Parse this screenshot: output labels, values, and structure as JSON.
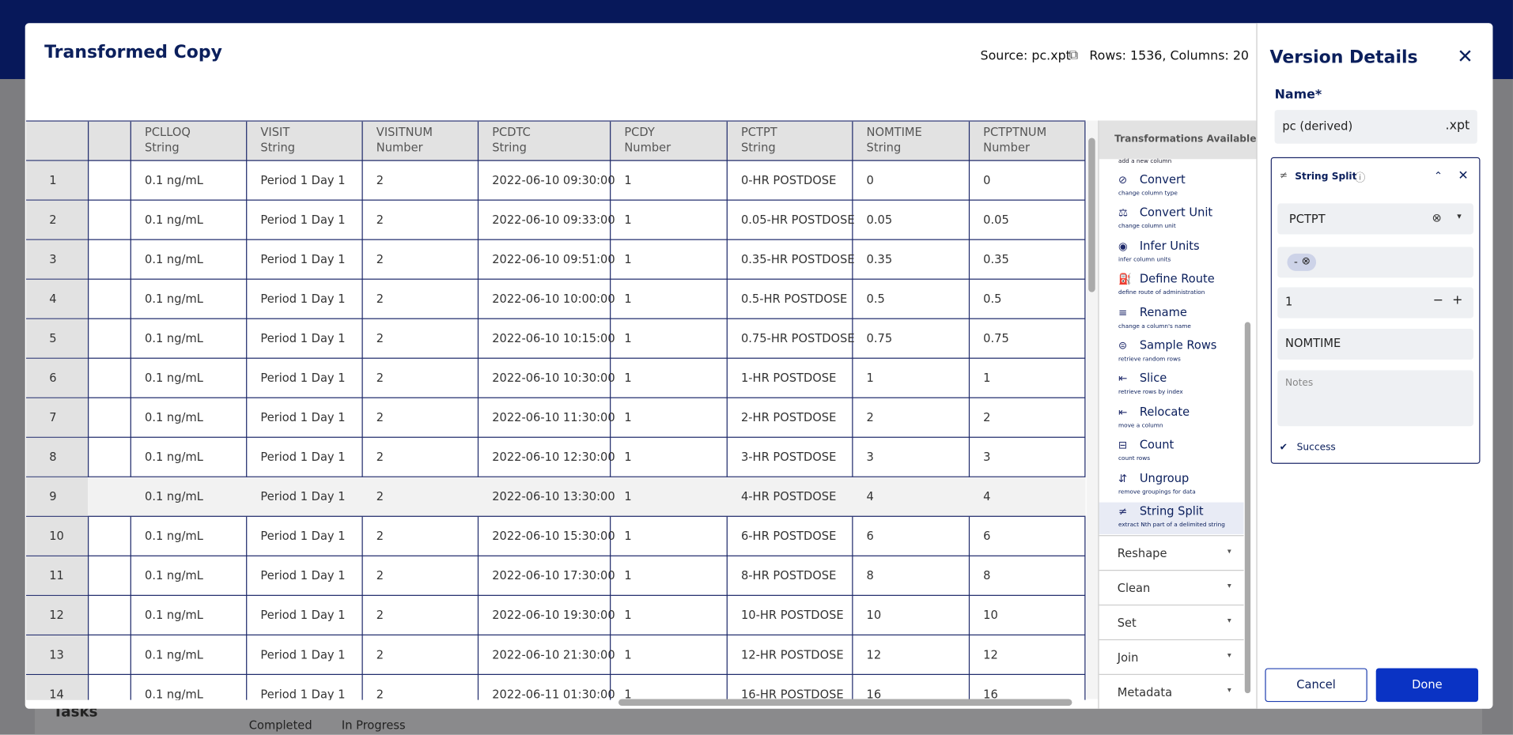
{
  "app": {
    "tasks": "Tasks",
    "completed": "Completed",
    "in_progress": "In Progress"
  },
  "header": {
    "title": "Transformed Copy",
    "source": "Source: pc.xpt",
    "size": "Rows: 1536, Columns: 20"
  },
  "table": {
    "columns": [
      {
        "name": "PCLLOQ",
        "type": "String"
      },
      {
        "name": "VISIT",
        "type": "String"
      },
      {
        "name": "VISITNUM",
        "type": "Number"
      },
      {
        "name": "PCDTC",
        "type": "String"
      },
      {
        "name": "PCDY",
        "type": "Number"
      },
      {
        "name": "PCTPT",
        "type": "String"
      },
      {
        "name": "NOMTIME",
        "type": "String"
      },
      {
        "name": "PCTPTNUM",
        "type": "Number"
      }
    ],
    "rows": [
      [
        "1",
        "0.1 ng/mL",
        "Period 1 Day 1",
        "2",
        "2022-06-10 09:30:00",
        "1",
        "0-HR POSTDOSE",
        "0",
        "0"
      ],
      [
        "2",
        "0.1 ng/mL",
        "Period 1 Day 1",
        "2",
        "2022-06-10 09:33:00",
        "1",
        "0.05-HR POSTDOSE",
        "0.05",
        "0.05"
      ],
      [
        "3",
        "0.1 ng/mL",
        "Period 1 Day 1",
        "2",
        "2022-06-10 09:51:00",
        "1",
        "0.35-HR POSTDOSE",
        "0.35",
        "0.35"
      ],
      [
        "4",
        "0.1 ng/mL",
        "Period 1 Day 1",
        "2",
        "2022-06-10 10:00:00",
        "1",
        "0.5-HR POSTDOSE",
        "0.5",
        "0.5"
      ],
      [
        "5",
        "0.1 ng/mL",
        "Period 1 Day 1",
        "2",
        "2022-06-10 10:15:00",
        "1",
        "0.75-HR POSTDOSE",
        "0.75",
        "0.75"
      ],
      [
        "6",
        "0.1 ng/mL",
        "Period 1 Day 1",
        "2",
        "2022-06-10 10:30:00",
        "1",
        "1-HR POSTDOSE",
        "1",
        "1"
      ],
      [
        "7",
        "0.1 ng/mL",
        "Period 1 Day 1",
        "2",
        "2022-06-10 11:30:00",
        "1",
        "2-HR POSTDOSE",
        "2",
        "2"
      ],
      [
        "8",
        "0.1 ng/mL",
        "Period 1 Day 1",
        "2",
        "2022-06-10 12:30:00",
        "1",
        "3-HR POSTDOSE",
        "3",
        "3"
      ],
      [
        "9",
        "0.1 ng/mL",
        "Period 1 Day 1",
        "2",
        "2022-06-10 13:30:00",
        "1",
        "4-HR POSTDOSE",
        "4",
        "4"
      ],
      [
        "10",
        "0.1 ng/mL",
        "Period 1 Day 1",
        "2",
        "2022-06-10 15:30:00",
        "1",
        "6-HR POSTDOSE",
        "6",
        "6"
      ],
      [
        "11",
        "0.1 ng/mL",
        "Period 1 Day 1",
        "2",
        "2022-06-10 17:30:00",
        "1",
        "8-HR POSTDOSE",
        "8",
        "8"
      ],
      [
        "12",
        "0.1 ng/mL",
        "Period 1 Day 1",
        "2",
        "2022-06-10 19:30:00",
        "1",
        "10-HR POSTDOSE",
        "10",
        "10"
      ],
      [
        "13",
        "0.1 ng/mL",
        "Period 1 Day 1",
        "2",
        "2022-06-10 21:30:00",
        "1",
        "12-HR POSTDOSE",
        "12",
        "12"
      ],
      [
        "14",
        "0.1 ng/mL",
        "Period 1 Day 1",
        "2",
        "2022-06-11 01:30:00",
        "1",
        "16-HR POSTDOSE",
        "16",
        "16"
      ]
    ]
  },
  "transformations": {
    "title": "Transformations Available",
    "cut_item": "add a new column",
    "items": [
      {
        "name": "Convert",
        "desc": "change column type"
      },
      {
        "name": "Convert Unit",
        "desc": "change column unit"
      },
      {
        "name": "Infer Units",
        "desc": "infer column units"
      },
      {
        "name": "Define Route",
        "desc": "define route of administration"
      },
      {
        "name": "Rename",
        "desc": "change a column's name"
      },
      {
        "name": "Sample Rows",
        "desc": "retrieve random rows"
      },
      {
        "name": "Slice",
        "desc": "retrieve rows by index"
      },
      {
        "name": "Relocate",
        "desc": "move a column"
      },
      {
        "name": "Count",
        "desc": "count rows"
      },
      {
        "name": "Ungroup",
        "desc": "remove groupings for data"
      },
      {
        "name": "String Split",
        "desc": "extract Nth part of a delimited string"
      }
    ],
    "categories": [
      "Reshape",
      "Clean",
      "Set",
      "Join",
      "Metadata"
    ]
  },
  "details": {
    "title": "Version Details",
    "name_label": "Name*",
    "name_value": "pc (derived)",
    "extension": ".xpt",
    "step": {
      "title": "String Split",
      "column": "PCTPT",
      "delimiter": "-",
      "index": "1",
      "new_column": "NOMTIME",
      "notes_placeholder": "Notes",
      "status": "Success"
    },
    "cancel": "Cancel",
    "done": "Done"
  }
}
